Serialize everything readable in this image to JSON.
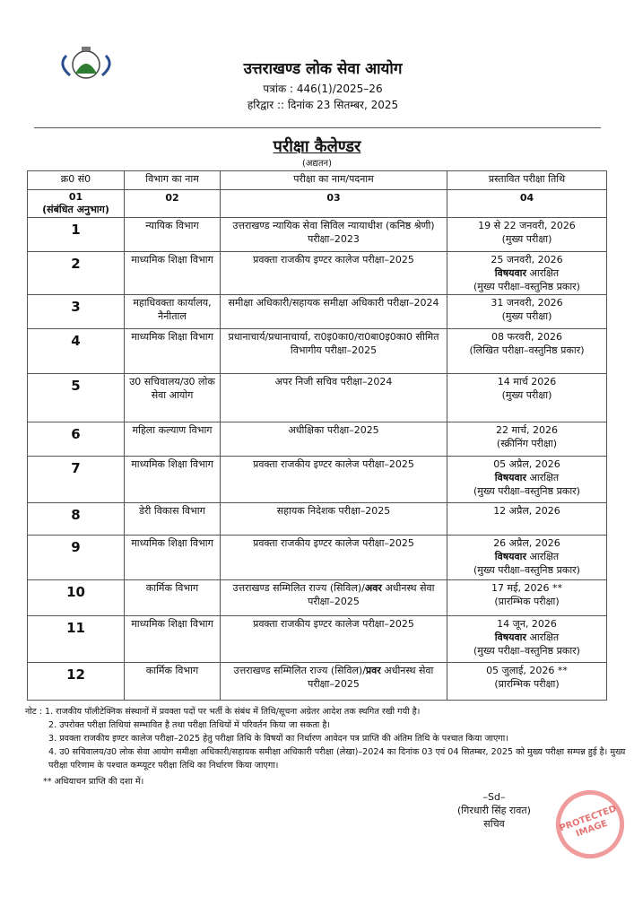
{
  "header": {
    "org": "उत्तराखण्ड लोक सेवा आयोग",
    "ref": "पत्रांक : 446(1)/2025–26",
    "place_date": "हरिद्वार :: दिनांक  23 सितम्बर, 2025",
    "logo_text": "UTTARAKHAND PUBLIC SERVICE COMMISSION"
  },
  "title": "परीक्षा कैलेण्डर",
  "subtitle": "(अद्यतन)",
  "table": {
    "headers": [
      "क्र0 सं0",
      "विभाग का नाम",
      "परीक्षा का नाम/पदनाम",
      "प्रस्तावित परीक्षा तिथि"
    ],
    "numbering": [
      "01",
      "(संबंधित अनुभाग)",
      "02",
      "03",
      "04"
    ],
    "rows": [
      {
        "sn": "1",
        "dept": "न्यायिक विभाग",
        "exam": "उत्तराखण्ड न्यायिक सेवा सिविल न्यायाधीश (कनिष्ठ श्रेणी) परीक्षा–2023",
        "d1": "19 से 22 जनवरी, 2026",
        "d2b": "",
        "d2": "(मुख्य परीक्षा)",
        "d3": ""
      },
      {
        "sn": "2",
        "dept": "माध्यमिक शिक्षा विभाग",
        "exam": "प्रवक्ता राजकीय इण्टर कालेज परीक्षा–2025",
        "d1": "25 जनवरी, 2026",
        "d2b": "विषयवार",
        "d2": " आरक्षित",
        "d3": "(मुख्य परीक्षा–वस्तुनिष्ठ प्रकार)"
      },
      {
        "sn": "3",
        "dept": "महाधिवक्ता कार्यालय, नैनीताल",
        "exam": "समीक्षा अधिकारी/सहायक समीक्षा अधिकारी परीक्षा–2024",
        "d1": "31 जनवरी, 2026",
        "d2b": "",
        "d2": "(मुख्य परीक्षा)",
        "d3": ""
      },
      {
        "sn": "4",
        "dept": "माध्यमिक शिक्षा विभाग",
        "exam": "प्रधानाचार्य/प्रधानाचार्या, रा0इ0का0/रा0बा0इ0का0 सीमित विभागीय परीक्षा–2025",
        "d1": "08 फरवरी, 2026",
        "d2b": "",
        "d2": "(लिखित परीक्षा–वस्तुनिष्ठ प्रकार)",
        "d3": ""
      },
      {
        "sn": "5",
        "dept": "उ0 सचिवालय/उ0 लोक सेवा आयोग",
        "exam": "अपर निजी सचिव परीक्षा–2024",
        "d1": "14 मार्च 2026",
        "d2b": "",
        "d2": "(मुख्य परीक्षा)",
        "d3": ""
      },
      {
        "sn": "6",
        "dept": "महिला कल्याण विभाग",
        "exam": "अधीक्षिका परीक्षा–2025",
        "d1": "22 मार्च, 2026",
        "d2b": "",
        "d2": "(स्क्रीनिंग परीक्षा)",
        "d3": ""
      },
      {
        "sn": "7",
        "dept": "माध्यमिक शिक्षा विभाग",
        "exam": "प्रवक्ता राजकीय इण्टर कालेज परीक्षा–2025",
        "d1": "05 अप्रैल, 2026",
        "d2b": "विषयवार",
        "d2": " आरक्षित",
        "d3": "(मुख्य परीक्षा–वस्तुनिष्ठ प्रकार)"
      },
      {
        "sn": "8",
        "dept": "डेरी विकास विभाग",
        "exam": "सहायक निदेशक परीक्षा–2025",
        "d1": "12 अप्रैल, 2026",
        "d2b": "",
        "d2": "",
        "d3": ""
      },
      {
        "sn": "9",
        "dept": "माध्यमिक शिक्षा विभाग",
        "exam": "प्रवक्ता राजकीय इण्टर कालेज परीक्षा–2025",
        "d1": "26 अप्रैल, 2026",
        "d2b": "विषयवार",
        "d2": " आरक्षित",
        "d3": "(मुख्य परीक्षा–वस्तुनिष्ठ प्रकार)"
      },
      {
        "sn": "10",
        "dept": "कार्मिक विभाग",
        "exam_a": "उत्तराखण्ड सम्मिलित राज्य (सिविल)/",
        "exam_b": "अवर",
        "exam_c": " अधीनस्थ सेवा परीक्षा–2025",
        "d1": "17 मई, 2026 **",
        "d2b": "",
        "d2": "(प्रारम्भिक परीक्षा)",
        "d3": ""
      },
      {
        "sn": "11",
        "dept": "माध्यमिक शिक्षा विभाग",
        "exam": "प्रवक्ता राजकीय इण्टर कालेज परीक्षा–2025",
        "d1": "14 जून, 2026",
        "d2b": "विषयवार",
        "d2": " आरक्षित",
        "d3": "(मुख्य परीक्षा–वस्तुनिष्ठ प्रकार)"
      },
      {
        "sn": "12",
        "dept": "कार्मिक विभाग",
        "exam_a": "उत्तराखण्ड सम्मिलित राज्य (सिविल)/",
        "exam_b": "प्रवर",
        "exam_c": " अधीनस्थ सेवा परीक्षा–2025",
        "d1": "05 जुलाई, 2026 **",
        "d2b": "",
        "d2": "(प्रारम्भिक परीक्षा)",
        "d3": ""
      }
    ]
  },
  "notes": [
    "नोट : 1. राजकीय पॉलीटेक्निक संस्थानों में प्रवक्ता पदों पर भर्ती के संबंध में तिथि/सूचना अग्रेतर आदेश तक स्थगित रखी गयी है।",
    "2. उपरोक्त परीक्षा तिथियां सम्भावित है तथा परीक्षा तिथियों में परिवर्तन किया जा सकता है।",
    "3. प्रवक्ता राजकीय इण्टर कालेज परीक्षा–2025 हेतु परीक्षा तिथि के विषयों का निर्धारण आवेदन पत्र प्राप्ति की अंतिम तिथि के पश्चात किया जाएगा।",
    "4. उ0 सचिवालय/उ0 लोक सेवा आयोग समीक्षा अधिकारी/सहायक समीक्षा अधिकारी परीक्षा (लेखा)–2024 का दिनांक 03 एवं 04 सितम्बर, 2025 को मुख्य परीक्षा सम्पन्न हुई है। मुख्य परीक्षा परिणाम के पश्चात कम्प्यूटर परीक्षा तिथि का निर्धारण किया जाएगा।",
    "**  अधियाचन प्राप्ति की दशा में।"
  ],
  "signature": {
    "sd": "–Sd–",
    "name": "(गिरधारी सिंह रावत)",
    "designation": "सचिव"
  },
  "watermark": {
    "text": "PROTECTED IMAGE",
    "color": "#e65a5a"
  }
}
